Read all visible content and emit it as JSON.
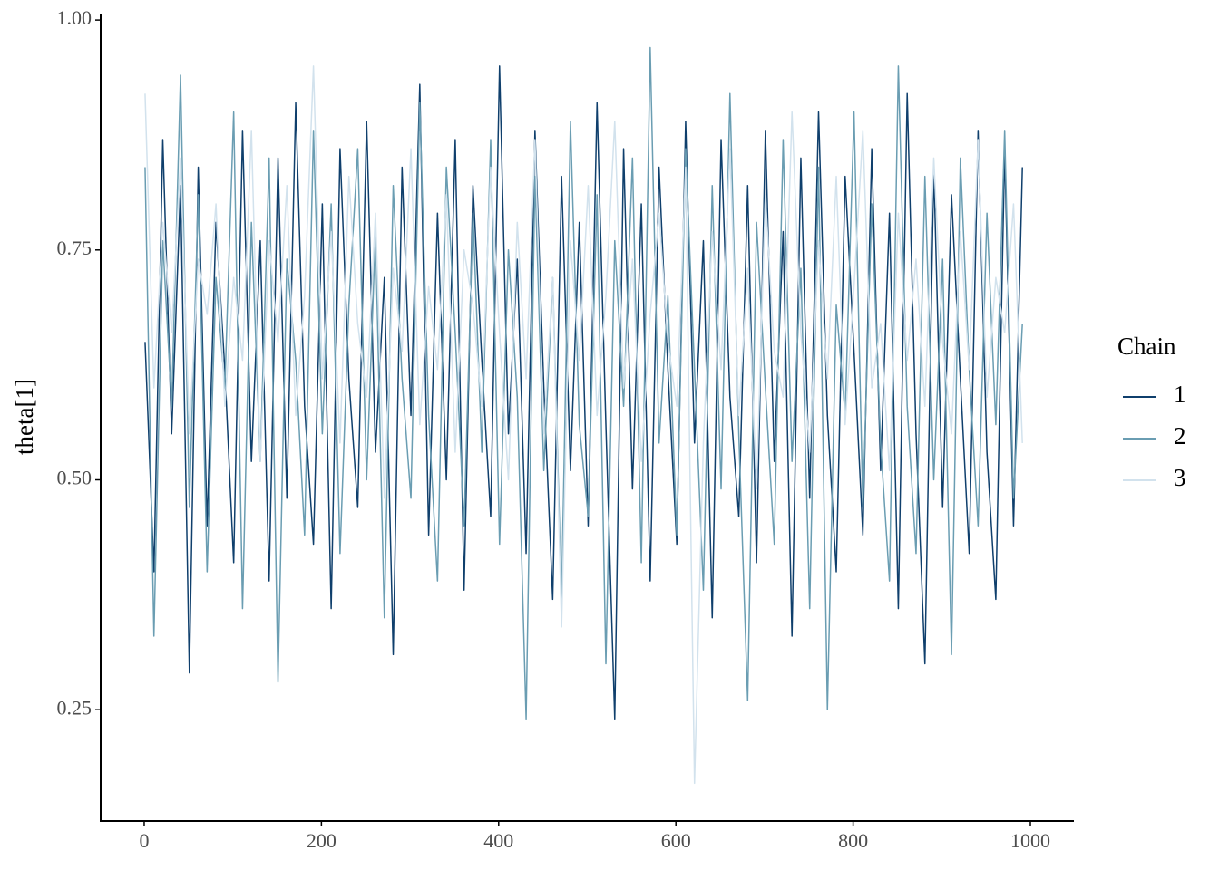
{
  "chart_data": {
    "type": "line",
    "y_label": "theta[1]",
    "legend_title": "Chain",
    "legend": "right",
    "grid": false,
    "xlim": [
      -49.1,
      1048.1
    ],
    "xticks": [
      0,
      200,
      400,
      600,
      800,
      1000
    ],
    "ylim": [
      0.129,
      1.007
    ],
    "yticks": [
      {
        "value": 0.25,
        "label": "0.25"
      },
      {
        "value": 0.5,
        "label": "0.50"
      },
      {
        "value": 0.75,
        "label": "0.75"
      },
      {
        "value": 1.0,
        "label": "1.00"
      }
    ],
    "x": [
      1,
      11,
      21,
      31,
      41,
      51,
      61,
      71,
      81,
      91,
      101,
      111,
      121,
      131,
      141,
      151,
      161,
      171,
      181,
      191,
      201,
      211,
      221,
      231,
      241,
      251,
      261,
      271,
      281,
      291,
      301,
      311,
      321,
      331,
      341,
      351,
      361,
      371,
      381,
      391,
      401,
      411,
      421,
      431,
      441,
      451,
      461,
      471,
      481,
      491,
      501,
      511,
      521,
      531,
      541,
      551,
      561,
      571,
      581,
      591,
      601,
      611,
      621,
      631,
      641,
      651,
      661,
      671,
      681,
      691,
      701,
      711,
      721,
      731,
      741,
      751,
      761,
      771,
      781,
      791,
      801,
      811,
      821,
      831,
      841,
      851,
      861,
      871,
      881,
      891,
      901,
      911,
      921,
      931,
      941,
      951,
      961,
      971,
      981,
      991
    ],
    "series": [
      {
        "name": "1",
        "color": "#0f3f6c",
        "values": [
          0.65,
          0.4,
          0.87,
          0.55,
          0.82,
          0.29,
          0.84,
          0.45,
          0.78,
          0.62,
          0.41,
          0.88,
          0.52,
          0.76,
          0.39,
          0.85,
          0.48,
          0.91,
          0.58,
          0.43,
          0.8,
          0.36,
          0.86,
          0.61,
          0.47,
          0.89,
          0.53,
          0.72,
          0.31,
          0.84,
          0.57,
          0.93,
          0.44,
          0.79,
          0.5,
          0.87,
          0.38,
          0.82,
          0.63,
          0.46,
          0.95,
          0.55,
          0.74,
          0.42,
          0.88,
          0.6,
          0.37,
          0.83,
          0.51,
          0.78,
          0.45,
          0.91,
          0.56,
          0.24,
          0.86,
          0.49,
          0.8,
          0.39,
          0.84,
          0.62,
          0.43,
          0.89,
          0.54,
          0.76,
          0.35,
          0.87,
          0.59,
          0.46,
          0.82,
          0.41,
          0.88,
          0.52,
          0.77,
          0.33,
          0.85,
          0.48,
          0.9,
          0.57,
          0.4,
          0.83,
          0.64,
          0.44,
          0.86,
          0.51,
          0.79,
          0.36,
          0.92,
          0.55,
          0.3,
          0.84,
          0.47,
          0.81,
          0.61,
          0.42,
          0.88,
          0.53,
          0.37,
          0.86,
          0.45,
          0.84
        ]
      },
      {
        "name": "2",
        "color": "#6a9db2",
        "values": [
          0.84,
          0.33,
          0.76,
          0.58,
          0.94,
          0.47,
          0.81,
          0.4,
          0.72,
          0.6,
          0.9,
          0.36,
          0.78,
          0.52,
          0.85,
          0.28,
          0.74,
          0.63,
          0.44,
          0.88,
          0.55,
          0.8,
          0.42,
          0.69,
          0.86,
          0.5,
          0.77,
          0.35,
          0.82,
          0.61,
          0.48,
          0.91,
          0.57,
          0.39,
          0.84,
          0.66,
          0.45,
          0.79,
          0.53,
          0.87,
          0.43,
          0.75,
          0.59,
          0.24,
          0.83,
          0.51,
          0.72,
          0.37,
          0.89,
          0.56,
          0.46,
          0.81,
          0.3,
          0.76,
          0.58,
          0.85,
          0.41,
          0.97,
          0.54,
          0.7,
          0.44,
          0.86,
          0.62,
          0.38,
          0.82,
          0.49,
          0.92,
          0.55,
          0.26,
          0.78,
          0.6,
          0.43,
          0.87,
          0.52,
          0.73,
          0.36,
          0.84,
          0.25,
          0.69,
          0.57,
          0.9,
          0.47,
          0.8,
          0.54,
          0.39,
          0.95,
          0.58,
          0.42,
          0.83,
          0.5,
          0.74,
          0.31,
          0.85,
          0.62,
          0.45,
          0.79,
          0.56,
          0.88,
          0.48,
          0.67
        ]
      },
      {
        "name": "3",
        "color": "#d2e2ed",
        "values": [
          0.92,
          0.6,
          0.78,
          0.66,
          0.85,
          0.55,
          0.74,
          0.68,
          0.8,
          0.58,
          0.72,
          0.63,
          0.88,
          0.52,
          0.76,
          0.65,
          0.82,
          0.57,
          0.7,
          0.95,
          0.61,
          0.77,
          0.54,
          0.83,
          0.67,
          0.59,
          0.79,
          0.48,
          0.73,
          0.64,
          0.86,
          0.56,
          0.71,
          0.62,
          0.81,
          0.53,
          0.75,
          0.69,
          0.58,
          0.84,
          0.66,
          0.5,
          0.78,
          0.61,
          0.87,
          0.55,
          0.72,
          0.34,
          0.76,
          0.63,
          0.82,
          0.57,
          0.7,
          0.89,
          0.6,
          0.74,
          0.52,
          0.68,
          0.79,
          0.65,
          0.58,
          0.84,
          0.17,
          0.54,
          0.77,
          0.62,
          0.86,
          0.57,
          0.73,
          0.49,
          0.81,
          0.64,
          0.59,
          0.9,
          0.66,
          0.53,
          0.76,
          0.61,
          0.83,
          0.56,
          0.71,
          0.88,
          0.6,
          0.67,
          0.51,
          0.79,
          0.63,
          0.74,
          0.58,
          0.85,
          0.65,
          0.55,
          0.77,
          0.62,
          0.87,
          0.59,
          0.72,
          0.66,
          0.8,
          0.54
        ]
      }
    ]
  }
}
